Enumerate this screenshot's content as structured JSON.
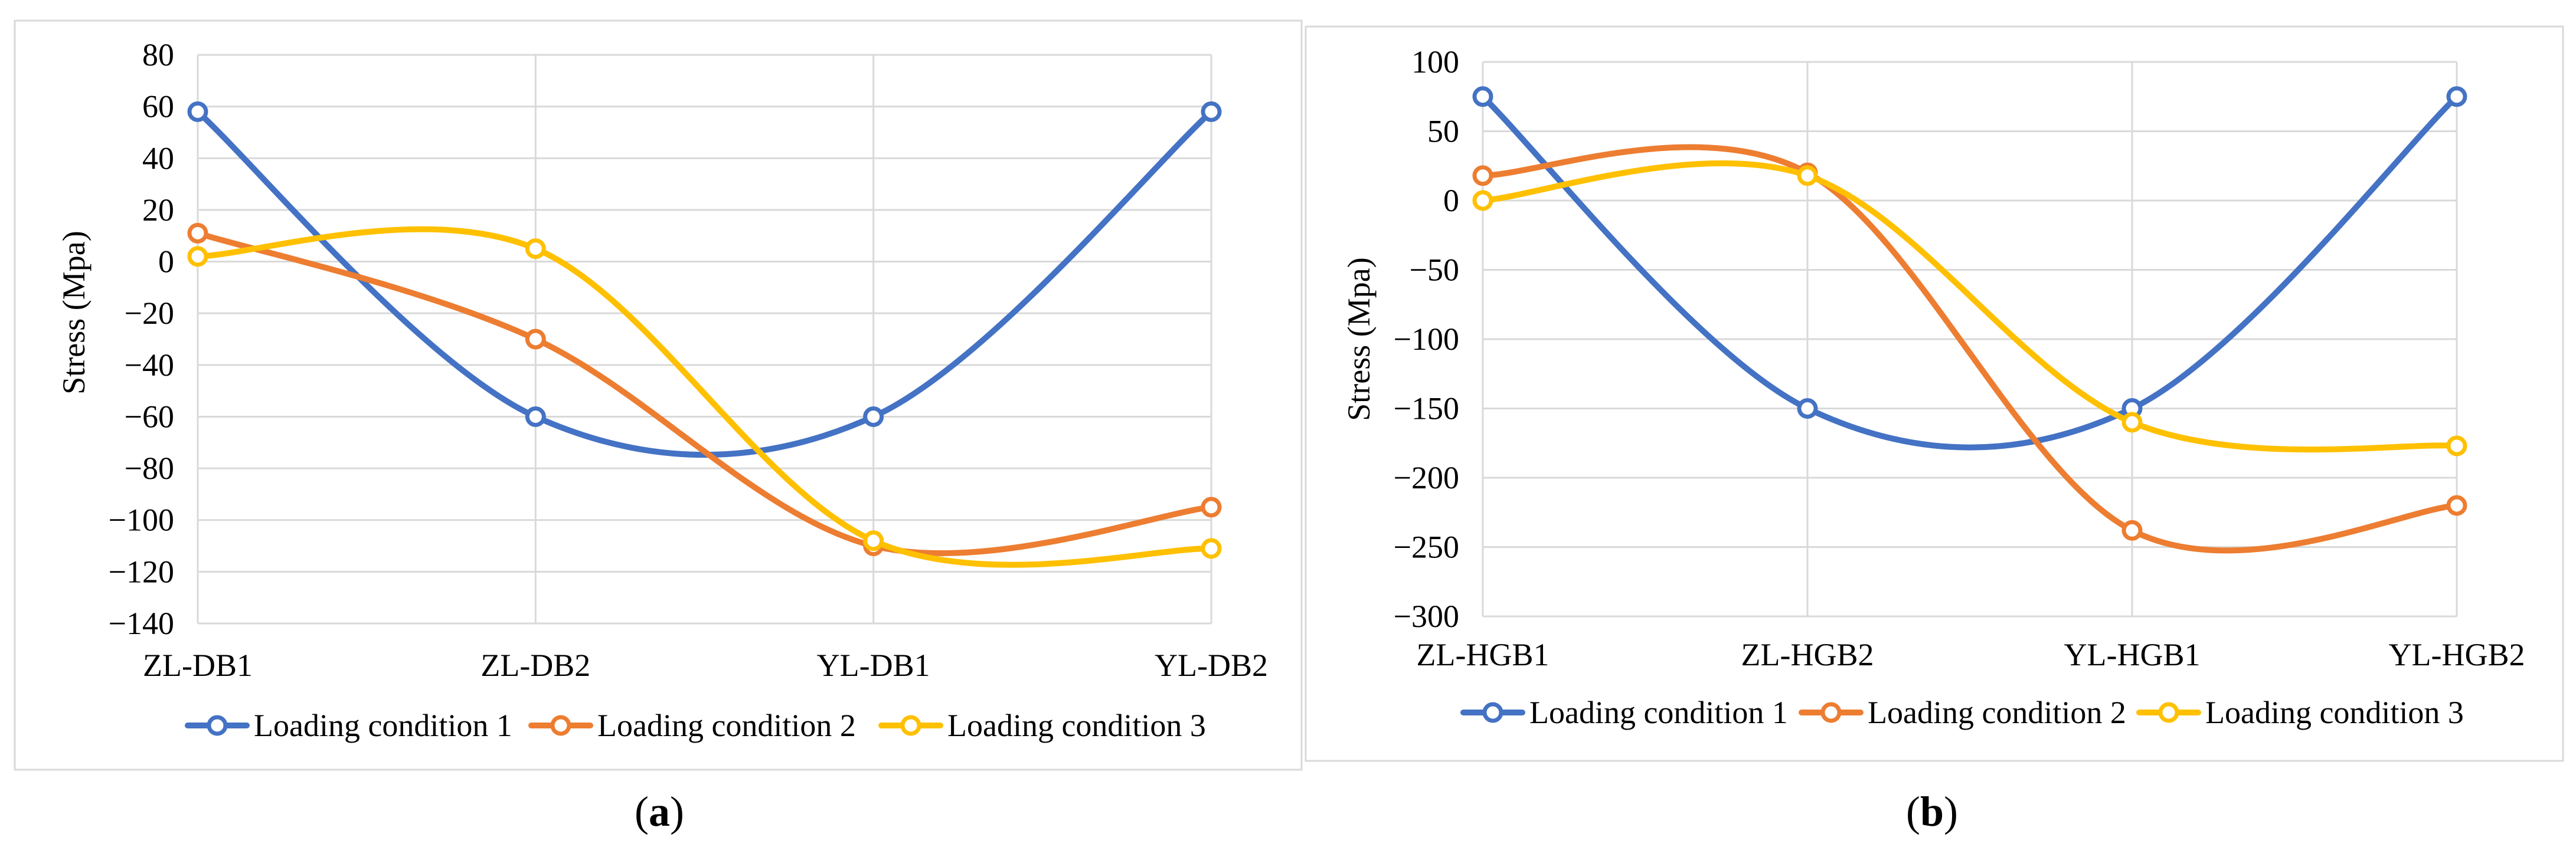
{
  "chart_data": [
    {
      "type": "line",
      "panel_label": "a",
      "title": "",
      "xlabel": "",
      "ylabel": "Stress (Mpa)",
      "categories": [
        "ZL-DB1",
        "ZL-DB2",
        "YL-DB1",
        "YL-DB2"
      ],
      "ylim": [
        -140,
        80
      ],
      "yticks": [
        80,
        60,
        40,
        20,
        0,
        -20,
        -40,
        -60,
        -80,
        -100,
        -120,
        -140
      ],
      "ytick_labels": [
        "80",
        "60",
        "40",
        "20",
        "0",
        "−20",
        "−40",
        "−60",
        "−80",
        "−100",
        "−120",
        "−140"
      ],
      "grid": true,
      "smooth": true,
      "legend_position": "bottom",
      "series": [
        {
          "name": "Loading condition 1",
          "color": "#4472C4",
          "values": [
            58,
            -60,
            -60,
            58
          ]
        },
        {
          "name": "Loading condition 2",
          "color": "#ED7D31",
          "values": [
            11,
            -30,
            -110,
            -95
          ]
        },
        {
          "name": "Loading condition 3",
          "color": "#FFC000",
          "values": [
            2,
            5,
            -108,
            -111
          ]
        }
      ]
    },
    {
      "type": "line",
      "panel_label": "b",
      "title": "",
      "xlabel": "",
      "ylabel": "Stress (Mpa)",
      "categories": [
        "ZL-HGB1",
        "ZL-HGB2",
        "YL-HGB1",
        "YL-HGB2"
      ],
      "ylim": [
        -300,
        100
      ],
      "yticks": [
        100,
        50,
        0,
        -50,
        -100,
        -150,
        -200,
        -250,
        -300
      ],
      "ytick_labels": [
        "100",
        "50",
        "0",
        "−50",
        "−100",
        "−150",
        "−200",
        "−250",
        "−300"
      ],
      "grid": true,
      "smooth": true,
      "legend_position": "bottom",
      "series": [
        {
          "name": "Loading condition 1",
          "color": "#4472C4",
          "values": [
            75,
            -150,
            -150,
            75
          ]
        },
        {
          "name": "Loading condition 2",
          "color": "#ED7D31",
          "values": [
            18,
            20,
            -238,
            -220
          ]
        },
        {
          "name": "Loading condition 3",
          "color": "#FFC000",
          "values": [
            0,
            18,
            -160,
            -177
          ]
        }
      ]
    }
  ],
  "captions": [
    {
      "open": "(",
      "letter": "a",
      "close": ")"
    },
    {
      "open": "(",
      "letter": "b",
      "close": ")"
    }
  ]
}
